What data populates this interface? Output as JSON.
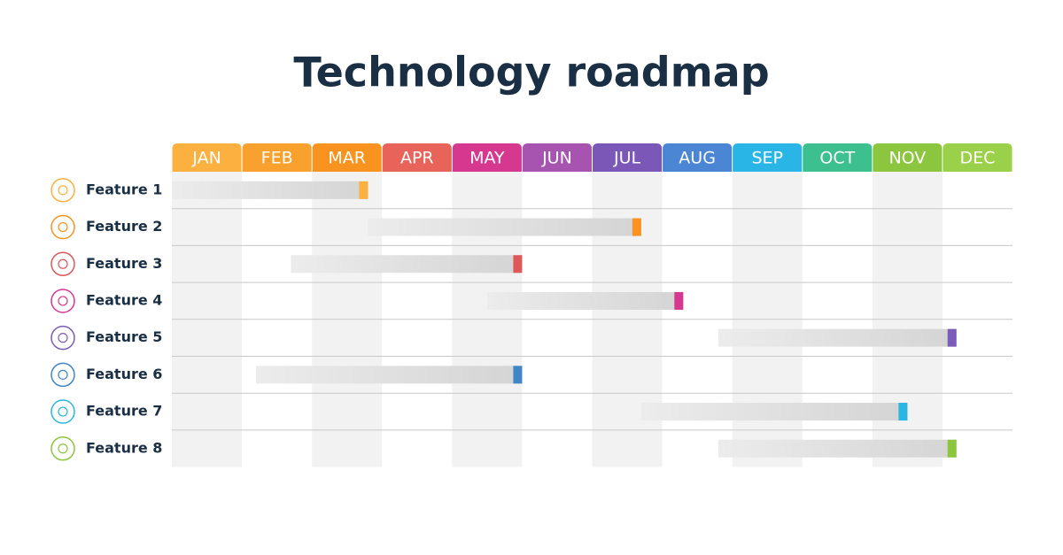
{
  "chart_data": {
    "type": "gantt",
    "title": "Technology roadmap",
    "months": [
      "JAN",
      "FEB",
      "MAR",
      "APR",
      "MAY",
      "JUN",
      "JUL",
      "AUG",
      "SEP",
      "OCT",
      "NOV",
      "DEC"
    ],
    "month_colors": [
      "#fbb040",
      "#f9a12e",
      "#f7931e",
      "#e8635a",
      "#d6378f",
      "#a654b0",
      "#7b57b8",
      "#4a86d4",
      "#29b6e6",
      "#3cc08f",
      "#8cc63f",
      "#9bd14a"
    ],
    "categories": [
      "Feature 1",
      "Feature 2",
      "Feature 3",
      "Feature 4",
      "Feature 5",
      "Feature 6",
      "Feature 7",
      "Feature 8"
    ],
    "start": [
      0,
      2.8,
      1.7,
      4.5,
      7.8,
      1.2,
      6.7,
      7.8
    ],
    "end": [
      2.8,
      6.7,
      5.0,
      7.3,
      11.2,
      5.0,
      10.5,
      11.2
    ],
    "colors": [
      "#fbb040",
      "#f7931e",
      "#e0575a",
      "#d6378f",
      "#7b5cb8",
      "#3f86c6",
      "#29b6e0",
      "#8cc63f"
    ],
    "xlim": [
      0,
      12
    ]
  }
}
